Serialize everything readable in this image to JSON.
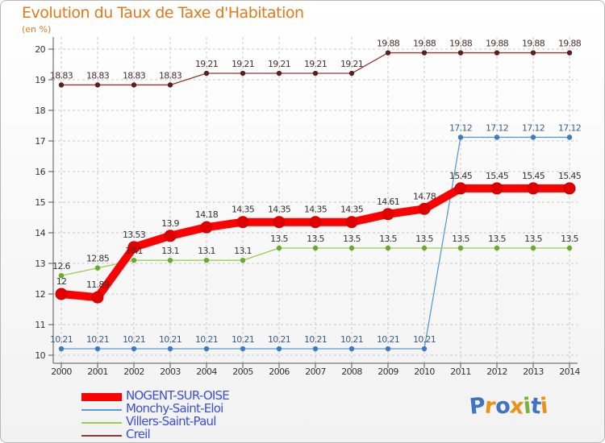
{
  "chart_data": {
    "type": "line",
    "title": "Evolution du Taux de Taxe d'Habitation",
    "unit": "(en %)",
    "x": [
      "2000",
      "2001",
      "2002",
      "2003",
      "2004",
      "2005",
      "2006",
      "2007",
      "2008",
      "2009",
      "2010",
      "2011",
      "2012",
      "2013",
      "2014"
    ],
    "ylim": [
      10,
      20
    ],
    "yticks": [
      10,
      11,
      12,
      13,
      14,
      15,
      16,
      17,
      18,
      19,
      20
    ],
    "grid": true,
    "legend_position": "bottom-left",
    "series": [
      {
        "name": "NOGENT-SUR-OISE",
        "color": "#ff0000",
        "values": [
          12,
          11.89,
          13.53,
          13.9,
          14.18,
          14.35,
          14.35,
          14.35,
          14.35,
          14.61,
          14.78,
          15.45,
          15.45,
          15.45,
          15.45
        ],
        "labels": [
          "12",
          "11.89",
          "13.53",
          "13.9",
          "14.18",
          "14.35",
          "14.35",
          "14.35",
          "14.35",
          "14.61",
          "14.78",
          "15.45",
          "15.45",
          "15.45",
          "15.45"
        ]
      },
      {
        "name": "Monchy-Saint-Eloi",
        "color": "#5a9bd5",
        "values": [
          10.21,
          10.21,
          10.21,
          10.21,
          10.21,
          10.21,
          10.21,
          10.21,
          10.21,
          10.21,
          10.21,
          17.12,
          17.12,
          17.12,
          17.12
        ],
        "labels": [
          "10.21",
          "10.21",
          "10.21",
          "10.21",
          "10.21",
          "10.21",
          "10.21",
          "10.21",
          "10.21",
          "10.21",
          "10.21",
          "17.12",
          "17.12",
          "17.12",
          "17.12"
        ]
      },
      {
        "name": "Villers-Saint-Paul",
        "color": "#99cc55",
        "values": [
          12.6,
          12.85,
          13.1,
          13.1,
          13.1,
          13.1,
          13.5,
          13.5,
          13.5,
          13.5,
          13.5,
          13.5,
          13.5,
          13.5,
          13.5
        ],
        "labels": [
          "12.6",
          "12.85",
          "13.1",
          "13.1",
          "13.1",
          "13.1",
          "13.5",
          "13.5",
          "13.5",
          "13.5",
          "13.5",
          "13.5",
          "13.5",
          "13.5",
          "13.5"
        ]
      },
      {
        "name": "Creil",
        "color": "#8b3a3a",
        "values": [
          18.83,
          18.83,
          18.83,
          18.83,
          19.21,
          19.21,
          19.21,
          19.21,
          19.21,
          19.88,
          19.88,
          19.88,
          19.88,
          19.88,
          19.88
        ],
        "labels": [
          "18.83",
          "18.83",
          "18.83",
          "18.83",
          "19.21",
          "19.21",
          "19.21",
          "19.21",
          "19.21",
          "19.88",
          "19.88",
          "19.88",
          "19.88",
          "19.88",
          "19.88"
        ]
      }
    ]
  },
  "logo": {
    "letters": [
      "P",
      "r",
      "o",
      "x",
      "i",
      "t",
      "i"
    ],
    "colors": [
      "#3f74c4",
      "#e8921a",
      "#3f74c4",
      "#e8921a",
      "#77b23a",
      "#3f74c4",
      "#e8921a"
    ]
  }
}
